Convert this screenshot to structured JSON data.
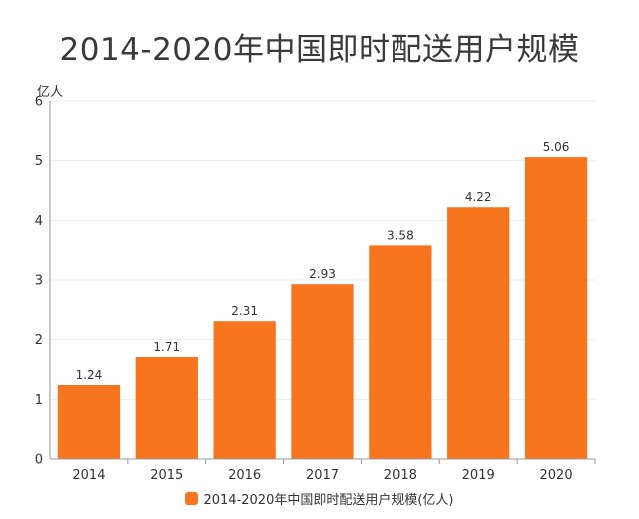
{
  "chart_data": {
    "type": "bar",
    "title": "2014-2020年中国即时配送用户规模",
    "ylabel": "亿人",
    "categories": [
      "2014",
      "2015",
      "2016",
      "2017",
      "2018",
      "2019",
      "2020"
    ],
    "values": [
      1.24,
      1.71,
      2.31,
      2.93,
      3.58,
      4.22,
      5.06
    ],
    "data_labels": [
      "1.24",
      "1.71",
      "2.31",
      "2.93",
      "3.58",
      "4.22",
      "5.06"
    ],
    "ylim": [
      0,
      6
    ],
    "yticks": [
      "0",
      "1",
      "2",
      "3",
      "4",
      "5",
      "6"
    ],
    "grid": true,
    "legend_position": "bottom",
    "series": [
      {
        "name": "2014-2020年中国即时配送用户规模(亿人)",
        "values": [
          1.24,
          1.71,
          2.31,
          2.93,
          3.58,
          4.22,
          5.06
        ]
      }
    ],
    "colors": {
      "bar": "#f7751f",
      "grid": "#ececec",
      "axis": "#999999",
      "text": "#333333"
    }
  }
}
